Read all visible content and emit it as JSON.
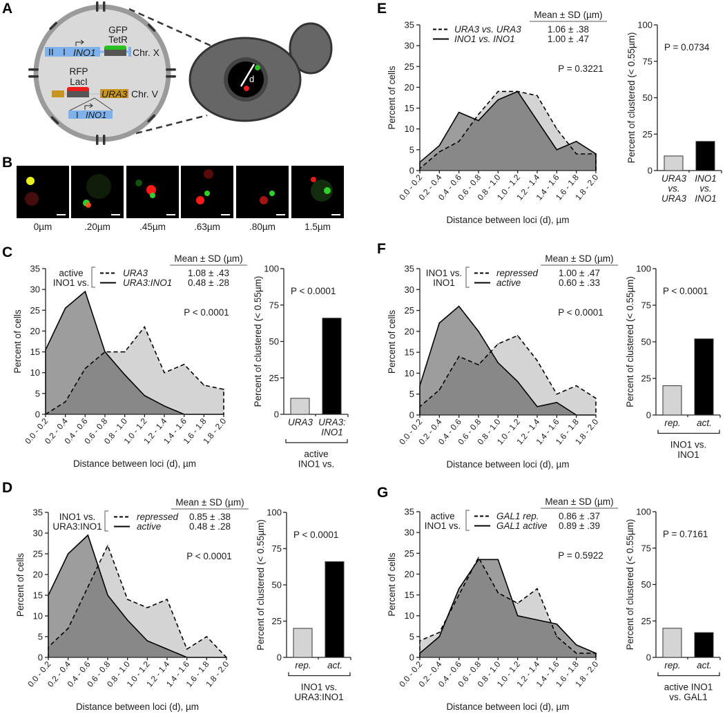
{
  "panel_letters": [
    "A",
    "B",
    "C",
    "D",
    "E",
    "F",
    "G"
  ],
  "panel_a": {
    "gfp": "GFP",
    "tetr": "TetR",
    "roman_2": "II",
    "roman_1": "I",
    "ino1": "INO1",
    "chr_x": "Chr. X",
    "rfp": "RFP",
    "laci": "LacI",
    "ura3": "URA3",
    "chr_v": "Chr. V",
    "insert_roman": "I",
    "insert_ino1": "INO1",
    "distance": "d",
    "colors": {
      "gene_blue": "#7fb2ea",
      "ura3_gold": "#c8961e",
      "gfp_green": "#27c21f",
      "rfp_red": "#ef1c1c"
    }
  },
  "panel_b": {
    "labels": [
      "0µm",
      ".20µm",
      ".45µm",
      ".63µm",
      ".80µm",
      "1.5µm"
    ]
  },
  "chart_data": [
    {
      "panel": "C",
      "type": "area",
      "xlabel": "Distance between loci (d), µm",
      "ylabel": "Percent of cells",
      "ylim": [
        0,
        35
      ],
      "yticks": [
        "0",
        "5",
        "10",
        "15",
        "20",
        "25",
        "30",
        "35"
      ],
      "categories": [
        "0.0 - 0.2",
        "0.2 - 0.4",
        "0.4 - 0.6",
        "0.6 - 0.8",
        "0.8 - 1.0",
        "1.0 - 1.2",
        "1.2 - 1.4",
        "1.4 - 1.6",
        "1.6 - 1.8",
        "1.8 - 2.0"
      ],
      "legend_group": [
        "active",
        "INO1 vs."
      ],
      "legend_header": "Mean ± SD (µm)",
      "series": [
        {
          "name": "URA3",
          "style": "dashed",
          "mean_sd": "1.08 ± .43",
          "values": [
            0,
            3,
            11,
            15,
            15,
            21,
            10,
            12,
            7,
            6
          ]
        },
        {
          "name": "URA3:INO1",
          "style": "solid",
          "mean_sd": "0.48 ± .28",
          "values": [
            15.5,
            25.5,
            29.5,
            15,
            9.5,
            4.5,
            2,
            0,
            0,
            0
          ]
        }
      ],
      "p_value": "P < 0.0001",
      "bar": {
        "type": "bar",
        "ylabel": "Percent of clustered (< 0.55µm)",
        "ylim": [
          0,
          100
        ],
        "yticks": [
          "0",
          "25",
          "50",
          "75",
          "100"
        ],
        "p_value": "P < 0.0001",
        "categories": [
          [
            "URA3"
          ],
          [
            "URA3:",
            "INO1"
          ]
        ],
        "values": [
          11,
          66
        ],
        "colors": [
          "#d4d4d4",
          "#000000"
        ],
        "group_label": [
          "active",
          "INO1 vs."
        ]
      }
    },
    {
      "panel": "D",
      "type": "area",
      "xlabel": "Distance between loci (d), µm",
      "ylabel": "Percent of cells",
      "ylim": [
        0,
        35
      ],
      "yticks": [
        "0",
        "5",
        "10",
        "15",
        "20",
        "25",
        "30",
        "35"
      ],
      "categories": [
        "0.0 - 0.2",
        "0.2 - 0.4",
        "0.4 - 0.6",
        "0.6 - 0.8",
        "0.8 - 1.0",
        "1.0 - 1.2",
        "1.2 - 1.4",
        "1.4 - 1.6",
        "1.6 - 1.8",
        "1.8 - 2.0"
      ],
      "legend_group": [
        "INO1 vs.",
        "URA3:INO1"
      ],
      "legend_header": "Mean ± SD (µm)",
      "series": [
        {
          "name": "repressed",
          "style": "dashed",
          "mean_sd": "0.85 ± .38",
          "values": [
            2.5,
            7,
            17,
            27,
            14,
            12,
            14,
            2,
            5,
            0
          ]
        },
        {
          "name": "active",
          "style": "solid",
          "mean_sd": "0.48 ± .28",
          "values": [
            15,
            25,
            29.5,
            15,
            9,
            4,
            2,
            0,
            0,
            0
          ]
        }
      ],
      "p_value": "P < 0.0001",
      "bar": {
        "type": "bar",
        "ylabel": "Percent of clustered (< 0.55µm)",
        "ylim": [
          0,
          100
        ],
        "yticks": [
          "0",
          "25",
          "50",
          "75",
          "100"
        ],
        "p_value": "P < 0.0001",
        "categories": [
          [
            "rep."
          ],
          [
            "act."
          ]
        ],
        "values": [
          20,
          66
        ],
        "colors": [
          "#d4d4d4",
          "#000000"
        ],
        "group_label": [
          "INO1 vs.",
          "URA3:INO1"
        ]
      }
    },
    {
      "panel": "E",
      "type": "area",
      "xlabel": "Distance between loci (d), µm",
      "ylabel": "Percent of cells",
      "ylim": [
        0,
        35
      ],
      "yticks": [
        "0",
        "5",
        "10",
        "15",
        "20",
        "25",
        "30",
        "35"
      ],
      "categories": [
        "0.0 - 0.2",
        "0.2 - 0.4",
        "0.4 - 0.6",
        "0.6 - 0.8",
        "0.8 - 1.0",
        "1.0 - 1.2",
        "1.2 - 1.4",
        "1.4 - 1.6",
        "1.6 - 1.8",
        "1.8 - 2.0"
      ],
      "legend_group": [],
      "legend_header": "Mean ± SD (µm)",
      "series": [
        {
          "name": "URA3 vs. URA3",
          "style": "dashed",
          "mean_sd": "1.06 ± .38",
          "values": [
            0.5,
            4.5,
            7,
            13.5,
            19,
            19,
            18,
            10,
            4,
            4
          ]
        },
        {
          "name": "INO1 vs. INO1",
          "style": "solid",
          "mean_sd": "1.00 ± .47",
          "values": [
            2,
            6,
            14,
            12,
            17,
            19,
            12,
            5,
            7,
            4
          ]
        }
      ],
      "p_value": "P = 0.3221",
      "bar": {
        "type": "bar",
        "ylabel": "Percent of clustered (< 0.55µm)",
        "ylim": [
          0,
          100
        ],
        "yticks": [
          "0",
          "25",
          "50",
          "75",
          "100"
        ],
        "p_value": "P = 0.0734",
        "categories": [
          [
            "URA3",
            "vs.",
            "URA3"
          ],
          [
            "INO1",
            "vs.",
            "INO1"
          ]
        ],
        "values": [
          10,
          20
        ],
        "colors": [
          "#d4d4d4",
          "#000000"
        ],
        "group_label": []
      }
    },
    {
      "panel": "F",
      "type": "area",
      "xlabel": "Distance between loci (d), µm",
      "ylabel": "Percent of cells",
      "ylim": [
        0,
        35
      ],
      "yticks": [
        "0",
        "5",
        "10",
        "15",
        "20",
        "25",
        "30",
        "35"
      ],
      "categories": [
        "0.0 - 0.2",
        "0.2 - 0.4",
        "0.4 - 0.6",
        "0.6 - 0.8",
        "0.8 - 1.0",
        "1.0 - 1.2",
        "1.2 - 1.4",
        "1.4 - 1.6",
        "1.6 - 1.8",
        "1.8 - 2.0"
      ],
      "legend_group": [
        "INO1 vs.",
        "INO1"
      ],
      "legend_header": "Mean ± SD (µm)",
      "series": [
        {
          "name": "repressed",
          "style": "dashed",
          "mean_sd": "1.00 ± .47",
          "values": [
            2,
            6,
            14,
            12,
            17,
            19,
            13,
            5,
            7,
            4
          ]
        },
        {
          "name": "active",
          "style": "solid",
          "mean_sd": "0.60 ± .33",
          "values": [
            7,
            22,
            26,
            20,
            12.5,
            8,
            2,
            3,
            0,
            0
          ]
        }
      ],
      "p_value": "P < 0.0001",
      "bar": {
        "type": "bar",
        "ylabel": "Percent of clustered (< 0.55µm)",
        "ylim": [
          0,
          100
        ],
        "yticks": [
          "0",
          "25",
          "50",
          "75",
          "100"
        ],
        "p_value": "P < 0.0001",
        "categories": [
          [
            "rep."
          ],
          [
            "act."
          ]
        ],
        "values": [
          20,
          52
        ],
        "colors": [
          "#d4d4d4",
          "#000000"
        ],
        "group_label": [
          "INO1 vs.",
          "INO1"
        ]
      }
    },
    {
      "panel": "G",
      "type": "area",
      "xlabel": "Distance between loci (d), µm",
      "ylabel": "Percent of cells",
      "ylim": [
        0,
        35
      ],
      "yticks": [
        "0",
        "5",
        "10",
        "15",
        "20",
        "25",
        "30",
        "35"
      ],
      "categories": [
        "0.0 - 0.2",
        "0.2 - 0.4",
        "0.4 - 0.6",
        "0.6 - 0.8",
        "0.8 - 1.0",
        "1.0 - 1.2",
        "1.2 - 1.4",
        "1.4 - 1.6",
        "1.6 - 1.8",
        "1.8 - 2.0"
      ],
      "legend_group": [
        "active",
        "INO1 vs."
      ],
      "legend_header": "Mean ± SD (µm)",
      "series": [
        {
          "name": "GAL1 rep.",
          "style": "dashed",
          "mean_sd": "0.86 ± .37",
          "values": [
            4,
            6,
            15,
            24,
            15.5,
            13,
            16.5,
            5,
            1,
            1
          ]
        },
        {
          "name": "GAL1 active",
          "style": "solid",
          "mean_sd": "0.89 ± .39",
          "values": [
            1,
            5,
            16.5,
            23.5,
            23.5,
            10,
            9,
            8,
            3,
            1
          ]
        }
      ],
      "p_value": "P = 0.5922",
      "bar": {
        "type": "bar",
        "ylabel": "Percent of clustered (< 0.55µm)",
        "ylim": [
          0,
          100
        ],
        "yticks": [
          "0",
          "25",
          "50",
          "75",
          "100"
        ],
        "p_value": "P = 0.7161",
        "categories": [
          [
            "rep."
          ],
          [
            "act."
          ]
        ],
        "values": [
          20,
          17
        ],
        "colors": [
          "#d4d4d4",
          "#000000"
        ],
        "group_label": [
          "active INO1",
          "vs. GAL1"
        ]
      }
    }
  ]
}
